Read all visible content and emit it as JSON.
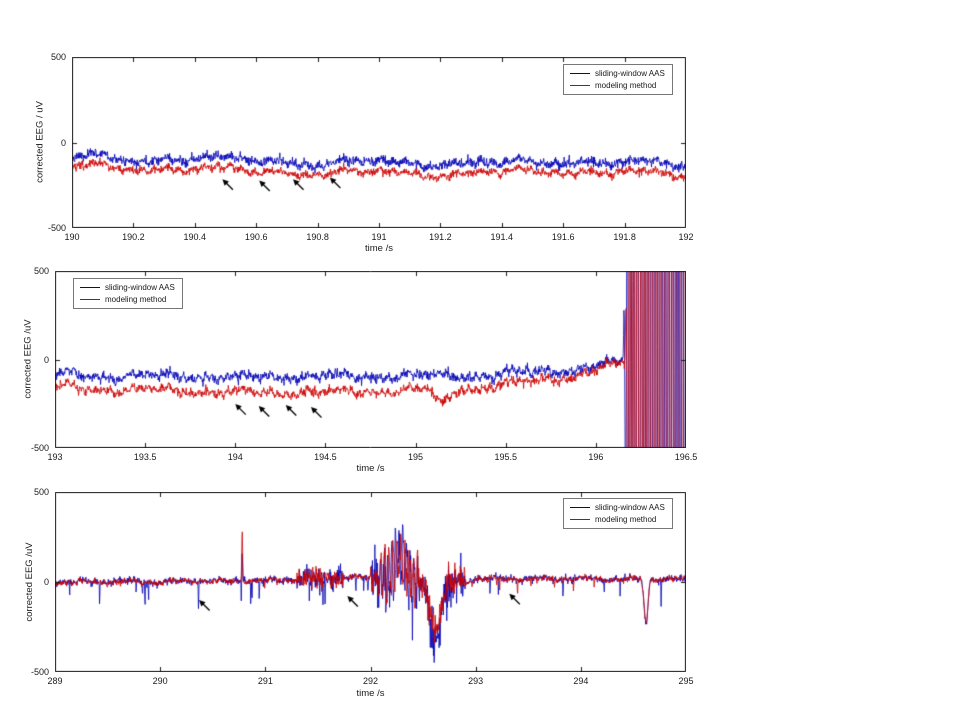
{
  "chart_data": [
    {
      "type": "line",
      "title": "",
      "xlabel": "time /s",
      "ylabel": "corrected EEG / uV",
      "xlim": [
        190,
        192
      ],
      "ylim": [
        -500,
        500
      ],
      "xticks": [
        190,
        190.2,
        190.4,
        190.6,
        190.8,
        191,
        191.2,
        191.4,
        191.6,
        191.8,
        192
      ],
      "xtick_labels": [
        "190",
        "190.2",
        "190.4",
        "190.6",
        "190.8",
        "191",
        "191.2",
        "191.4",
        "191.6",
        "191.8",
        "192"
      ],
      "yticks": [
        -500,
        0,
        500
      ],
      "ytick_labels": [
        "-500",
        "0",
        "500"
      ],
      "grid": false,
      "legend": {
        "position": "top-right",
        "entries": [
          {
            "label": "sliding-window AAS",
            "color": "#0000b4"
          },
          {
            "label": "modeling method",
            "color": "#cc0000"
          }
        ]
      },
      "common": {
        "seed": 101,
        "freqs": [
          2.2,
          5.1,
          8.7,
          24.5
        ],
        "amps": [
          13,
          9,
          6,
          10
        ],
        "rw": 0.4
      },
      "series": [
        {
          "name": "sliding-window AAS",
          "color": "#0000b4",
          "seed": 7,
          "common_scale": 1.0,
          "noise": 13,
          "trend_x": [
            190,
            190.2,
            190.4,
            190.6,
            190.8,
            191,
            191.2,
            191.4,
            191.6,
            191.8,
            192
          ],
          "trend_y": [
            -85,
            -96,
            -88,
            -85,
            -97,
            -90,
            -86,
            -93,
            -80,
            -92,
            -100
          ],
          "events": []
        },
        {
          "name": "modeling method",
          "color": "#cc0000",
          "seed": 8,
          "common_scale": 0.95,
          "noise": 11,
          "trend_x": [
            190,
            190.2,
            190.4,
            190.6,
            190.8,
            191,
            191.2,
            191.4,
            191.6,
            191.8,
            192
          ],
          "trend_y": [
            -138,
            -152,
            -146,
            -151,
            -158,
            -147,
            -152,
            -147,
            -139,
            -151,
            -166
          ],
          "events": []
        }
      ],
      "annotations": [
        {
          "type": "arrow",
          "x": 190.49,
          "y": -215
        },
        {
          "type": "arrow",
          "x": 190.61,
          "y": -222
        },
        {
          "type": "arrow",
          "x": 190.72,
          "y": -215
        },
        {
          "type": "arrow",
          "x": 190.84,
          "y": -205
        }
      ]
    },
    {
      "type": "line",
      "title": "",
      "xlabel": "time /s",
      "ylabel": "corrected EEG /uV",
      "xlim": [
        193,
        196.5
      ],
      "ylim": [
        -500,
        500
      ],
      "xticks": [
        193,
        193.5,
        194,
        194.5,
        195,
        195.5,
        196,
        196.5
      ],
      "xtick_labels": [
        "193",
        "193.5",
        "194",
        "194.5",
        "195",
        "195.5",
        "196",
        "196.5"
      ],
      "yticks": [
        -500,
        0,
        500
      ],
      "ytick_labels": [
        "-500",
        "0",
        "500"
      ],
      "grid": false,
      "legend": {
        "position": "top-left",
        "entries": [
          {
            "label": "sliding-window AAS",
            "color": "#0000b4"
          },
          {
            "label": "modeling method",
            "color": "#cc0000"
          }
        ]
      },
      "common": {
        "seed": 202,
        "freqs": [
          2.0,
          5.3,
          9.1,
          24.7
        ],
        "amps": [
          14,
          9,
          6,
          11
        ],
        "rw": 0.4
      },
      "series": [
        {
          "name": "sliding-window AAS",
          "color": "#0000b4",
          "seed": 9,
          "common_scale": 1.0,
          "noise": 13,
          "trend_x": [
            193,
            193.5,
            194,
            194.5,
            195,
            195.5,
            195.9,
            196.05,
            196.15,
            196.5
          ],
          "trend_y": [
            -88,
            -96,
            -100,
            -92,
            -86,
            -80,
            -58,
            -30,
            -15,
            0
          ],
          "events": [
            {
              "type": "osc",
              "xs": 196.15,
              "xe": 196.5,
              "freq": 52,
              "amp": 2600,
              "ramp": 0.05
            }
          ]
        },
        {
          "name": "modeling method",
          "color": "#cc0000",
          "seed": 10,
          "common_scale": 0.95,
          "noise": 11,
          "trend_x": [
            193,
            193.5,
            194,
            194.5,
            195,
            195.5,
            195.9,
            196.05,
            196.15,
            196.5
          ],
          "trend_y": [
            -158,
            -176,
            -188,
            -182,
            -168,
            -143,
            -95,
            -45,
            -20,
            0
          ],
          "events": [
            {
              "type": "gauss",
              "x": 195.15,
              "w": 0.05,
              "amp": -85
            },
            {
              "type": "osc",
              "xs": 196.16,
              "xe": 196.5,
              "freq": 46,
              "amp": 2400,
              "ramp": 0.05
            }
          ]
        }
      ],
      "annotations": [
        {
          "type": "arrow",
          "x": 194.0,
          "y": -252
        },
        {
          "type": "arrow",
          "x": 194.13,
          "y": -263
        },
        {
          "type": "arrow",
          "x": 194.28,
          "y": -257
        },
        {
          "type": "arrow",
          "x": 194.42,
          "y": -268
        }
      ]
    },
    {
      "type": "line",
      "title": "",
      "xlabel": "time /s",
      "ylabel": "corrected EEG /uV",
      "xlim": [
        289,
        295
      ],
      "ylim": [
        -500,
        500
      ],
      "xticks": [
        289,
        290,
        291,
        292,
        293,
        294,
        295
      ],
      "xtick_labels": [
        "289",
        "290",
        "291",
        "292",
        "293",
        "294",
        "295"
      ],
      "yticks": [
        -500,
        0,
        500
      ],
      "ytick_labels": [
        "-500",
        "0",
        "500"
      ],
      "grid": false,
      "legend": {
        "position": "top-right",
        "entries": [
          {
            "label": "sliding-window AAS",
            "color": "#0000b4"
          },
          {
            "label": "modeling method",
            "color": "#cc0000"
          }
        ]
      },
      "common": {
        "seed": 303,
        "freqs": [
          2.3,
          6.1,
          21.0
        ],
        "amps": [
          6,
          4,
          5
        ],
        "rw": 0.25
      },
      "series": [
        {
          "name": "sliding-window AAS",
          "color": "#0000b4",
          "seed": 11,
          "common_scale": 1.0,
          "noise": 9,
          "trend_x": [
            289,
            290,
            291,
            291.5,
            292,
            292.2,
            292.5,
            292.8,
            293,
            293.5,
            294,
            294.5,
            295
          ],
          "trend_y": [
            3,
            0,
            -2,
            10,
            15,
            40,
            -20,
            -20,
            5,
            0,
            3,
            0,
            -8
          ],
          "events": [
            {
              "type": "gauss",
              "x": 290.78,
              "w": 0.006,
              "amp": 180
            },
            {
              "type": "osc",
              "xs": 292.05,
              "xe": 292.45,
              "freq": 28,
              "amp": 150,
              "ramp": 0.06
            },
            {
              "type": "gauss",
              "x": 292.28,
              "w": 0.06,
              "amp": 110
            },
            {
              "type": "gauss",
              "x": 292.62,
              "w": 0.07,
              "amp": -340
            },
            {
              "type": "noise",
              "xs": 291.3,
              "xe": 291.75,
              "amp": 30,
              "seed": 21
            },
            {
              "type": "noise",
              "xs": 292.0,
              "xe": 292.9,
              "amp": 55,
              "seed": 22
            },
            {
              "type": "gauss",
              "x": 294.62,
              "w": 0.025,
              "amp": -245
            },
            {
              "type": "impulses",
              "xs": 289.1,
              "xe": 294.9,
              "count": 26,
              "amp_min": -150,
              "amp_max": -55,
              "w": 0.003,
              "seed": 77
            }
          ]
        },
        {
          "name": "modeling method",
          "color": "#cc0000",
          "seed": 12,
          "common_scale": 1.0,
          "noise": 7,
          "trend_x": [
            289,
            290,
            291,
            291.5,
            292,
            292.2,
            292.5,
            292.8,
            293,
            293.5,
            294,
            294.5,
            295
          ],
          "trend_y": [
            0,
            0,
            0,
            8,
            12,
            35,
            -15,
            -15,
            3,
            0,
            2,
            0,
            -5
          ],
          "events": [
            {
              "type": "gauss",
              "x": 290.78,
              "w": 0.006,
              "amp": 295
            },
            {
              "type": "osc",
              "xs": 292.05,
              "xe": 292.45,
              "freq": 26,
              "amp": 130,
              "ramp": 0.06
            },
            {
              "type": "gauss",
              "x": 292.28,
              "w": 0.06,
              "amp": 100
            },
            {
              "type": "gauss",
              "x": 292.62,
              "w": 0.07,
              "amp": -265
            },
            {
              "type": "noise",
              "xs": 291.3,
              "xe": 291.75,
              "amp": 26,
              "seed": 23
            },
            {
              "type": "noise",
              "xs": 292.0,
              "xe": 292.9,
              "amp": 40,
              "seed": 24
            },
            {
              "type": "gauss",
              "x": 294.62,
              "w": 0.025,
              "amp": -235
            },
            {
              "type": "impulses",
              "xs": 289.2,
              "xe": 294.8,
              "count": 12,
              "amp_min": -85,
              "amp_max": -35,
              "w": 0.003,
              "seed": 31
            }
          ]
        }
      ],
      "annotations": [
        {
          "type": "arrow",
          "x": 290.37,
          "y": -100
        },
        {
          "type": "arrow",
          "x": 291.78,
          "y": -78
        },
        {
          "type": "arrow",
          "x": 293.32,
          "y": -65
        }
      ]
    }
  ]
}
